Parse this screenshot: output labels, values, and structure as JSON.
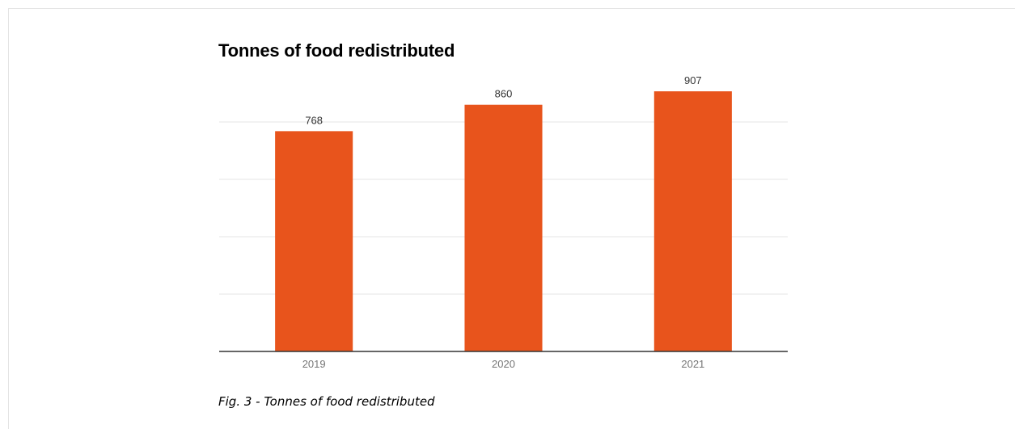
{
  "caption": "Fig. 3 - Tonnes of food redistributed",
  "chart_data": {
    "type": "bar",
    "title": "Tonnes of food redistributed",
    "categories": [
      "2019",
      "2020",
      "2021"
    ],
    "values": [
      768,
      860,
      907
    ],
    "bar_color": "#e8541c",
    "grid": true,
    "ylim": [
      0,
      1000
    ],
    "xlabel": "",
    "ylabel": ""
  }
}
